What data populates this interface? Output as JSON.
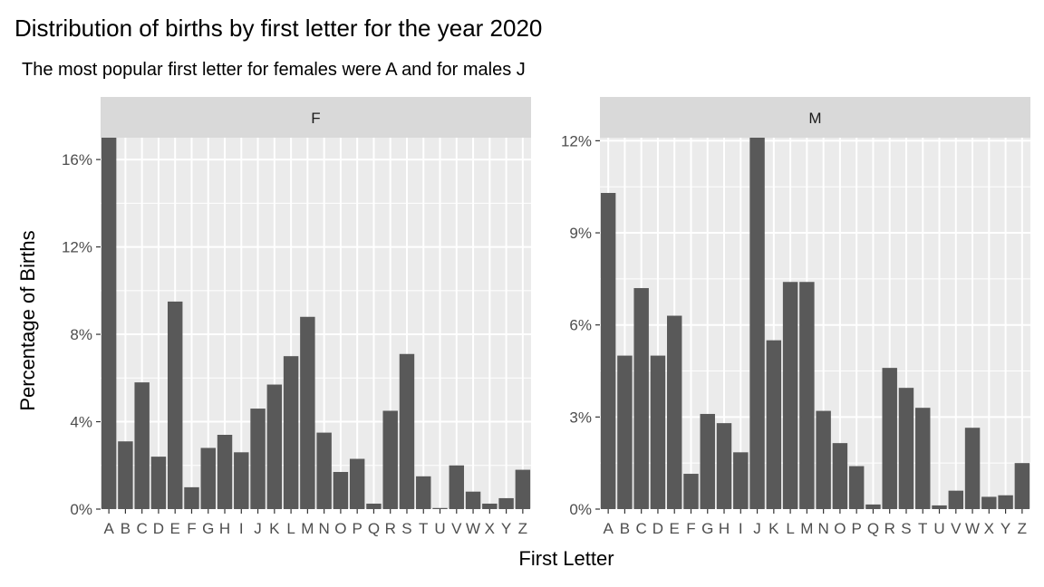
{
  "chart_data": {
    "type": "bar",
    "title": "Distribution of births by first letter for the year 2020",
    "subtitle": "The most popular first letter for females were A and for males J",
    "xlabel": "First Letter",
    "ylabel": "Percentage of Births",
    "categories": [
      "A",
      "B",
      "C",
      "D",
      "E",
      "F",
      "G",
      "H",
      "I",
      "J",
      "K",
      "L",
      "M",
      "N",
      "O",
      "P",
      "Q",
      "R",
      "S",
      "T",
      "U",
      "V",
      "W",
      "X",
      "Y",
      "Z"
    ],
    "facets": [
      {
        "name": "F",
        "ylim": [
          0,
          17.0
        ],
        "yticks": [
          0,
          4,
          8,
          12,
          16
        ],
        "ytick_labels": [
          "0%",
          "4%",
          "8%",
          "12%",
          "16%"
        ],
        "values": [
          17.0,
          3.1,
          5.8,
          2.4,
          9.5,
          1.0,
          2.8,
          3.4,
          2.6,
          4.6,
          5.7,
          7.0,
          8.8,
          3.5,
          1.7,
          2.3,
          0.25,
          4.5,
          7.1,
          1.5,
          0.05,
          2.0,
          0.8,
          0.25,
          0.5,
          1.8
        ]
      },
      {
        "name": "M",
        "ylim": [
          0,
          12.1
        ],
        "yticks": [
          0,
          3,
          6,
          9,
          12
        ],
        "ytick_labels": [
          "0%",
          "3%",
          "6%",
          "9%",
          "12%"
        ],
        "values": [
          10.3,
          5.0,
          7.2,
          5.0,
          6.3,
          1.15,
          3.1,
          2.8,
          1.85,
          12.1,
          5.5,
          7.4,
          7.4,
          3.2,
          2.15,
          1.4,
          0.15,
          4.6,
          3.95,
          3.3,
          0.12,
          0.6,
          2.65,
          0.4,
          0.45,
          1.5
        ]
      }
    ],
    "x_tick_labels": [
      "A",
      "B",
      "C",
      "D",
      "E",
      "F",
      "G",
      "H",
      "I",
      "J",
      "K",
      "L",
      "M",
      "N",
      "O",
      "P",
      "Q",
      "R",
      "S",
      "T",
      "U",
      "V",
      "W",
      "X",
      "Y",
      "Z"
    ],
    "grid": true,
    "colors": {
      "bar": "#595959",
      "panel": "#ebebeb",
      "strip": "#d9d9d9",
      "grid": "#ffffff"
    }
  }
}
